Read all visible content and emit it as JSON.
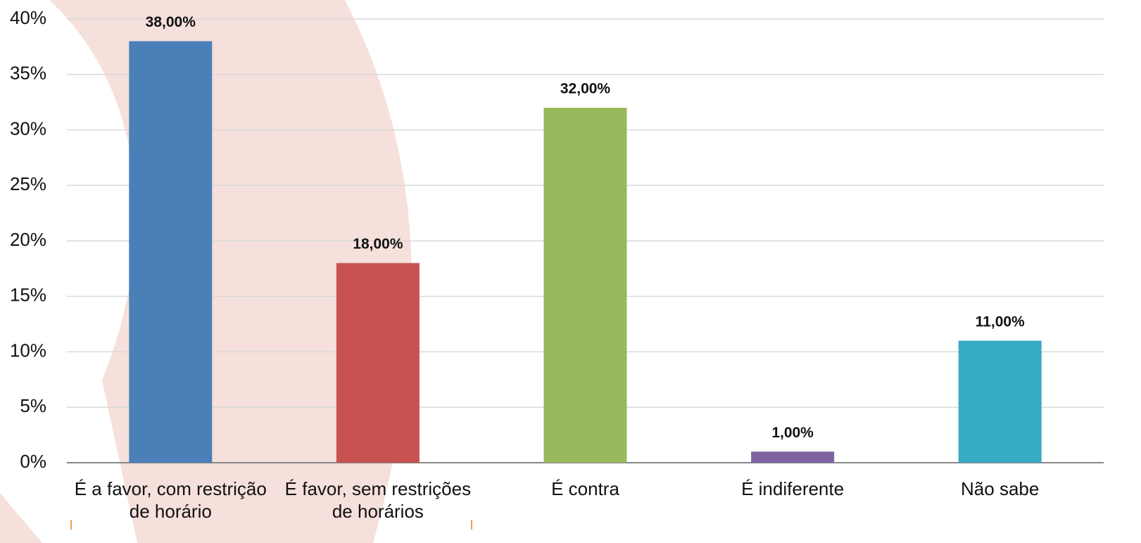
{
  "chart_data": {
    "type": "bar",
    "categories": [
      "É a favor, com restrição de horário",
      "É favor, sem restrições de horários",
      "É contra",
      "É indiferente",
      "Não sabe"
    ],
    "values": [
      38,
      18,
      32,
      1,
      11
    ],
    "value_labels": [
      "38,00%",
      "18,00%",
      "32,00%",
      "1,00%",
      "11,00%"
    ],
    "colors": [
      "#4a7fb8",
      "#c75250",
      "#98b95c",
      "#7f64a1",
      "#37aac4"
    ],
    "ylim": [
      0,
      40
    ],
    "yticks": [
      {
        "value": 0,
        "label": "0%"
      },
      {
        "value": 5,
        "label": "5%"
      },
      {
        "value": 10,
        "label": "10%"
      },
      {
        "value": 15,
        "label": "15%"
      },
      {
        "value": 20,
        "label": "20%"
      },
      {
        "value": 25,
        "label": "25%"
      },
      {
        "value": 30,
        "label": "30%"
      },
      {
        "value": 35,
        "label": "35%"
      },
      {
        "value": 40,
        "label": "40%"
      }
    ],
    "grid": true
  }
}
